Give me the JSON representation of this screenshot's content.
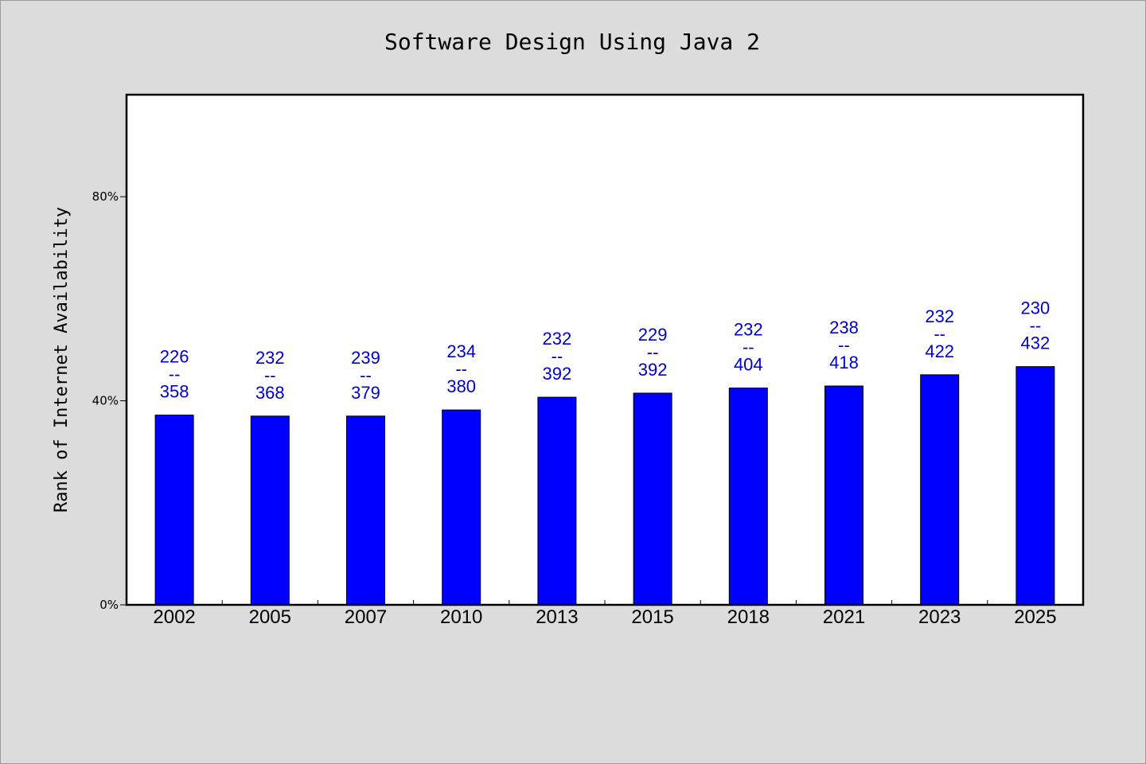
{
  "chart_data": {
    "type": "bar",
    "title": "Software Design Using Java 2",
    "ylabel": "Rank of Internet Availability",
    "xlabel": "",
    "ylim": [
      0,
      100
    ],
    "yticks": [
      {
        "value": 0,
        "label": "0%"
      },
      {
        "value": 40,
        "label": "40%"
      },
      {
        "value": 80,
        "label": "80%"
      }
    ],
    "categories": [
      "2002",
      "2005",
      "2007",
      "2010",
      "2013",
      "2015",
      "2018",
      "2021",
      "2023",
      "2025"
    ],
    "values": [
      37.2,
      37.0,
      37.0,
      38.2,
      40.7,
      41.5,
      42.5,
      42.9,
      45.1,
      46.7
    ],
    "data_labels": [
      {
        "top": "226",
        "sep": "--",
        "bottom": "358"
      },
      {
        "top": "232",
        "sep": "--",
        "bottom": "368"
      },
      {
        "top": "239",
        "sep": "--",
        "bottom": "379"
      },
      {
        "top": "234",
        "sep": "--",
        "bottom": "380"
      },
      {
        "top": "232",
        "sep": "--",
        "bottom": "392"
      },
      {
        "top": "229",
        "sep": "--",
        "bottom": "392"
      },
      {
        "top": "232",
        "sep": "--",
        "bottom": "404"
      },
      {
        "top": "238",
        "sep": "--",
        "bottom": "418"
      },
      {
        "top": "232",
        "sep": "--",
        "bottom": "422"
      },
      {
        "top": "230",
        "sep": "--",
        "bottom": "432"
      }
    ],
    "grid": false,
    "legend": "none",
    "colors": {
      "bar": "#0000ff",
      "label": "#0000cc",
      "background": "#dcdcdc",
      "plot_background": "#ffffff"
    }
  }
}
